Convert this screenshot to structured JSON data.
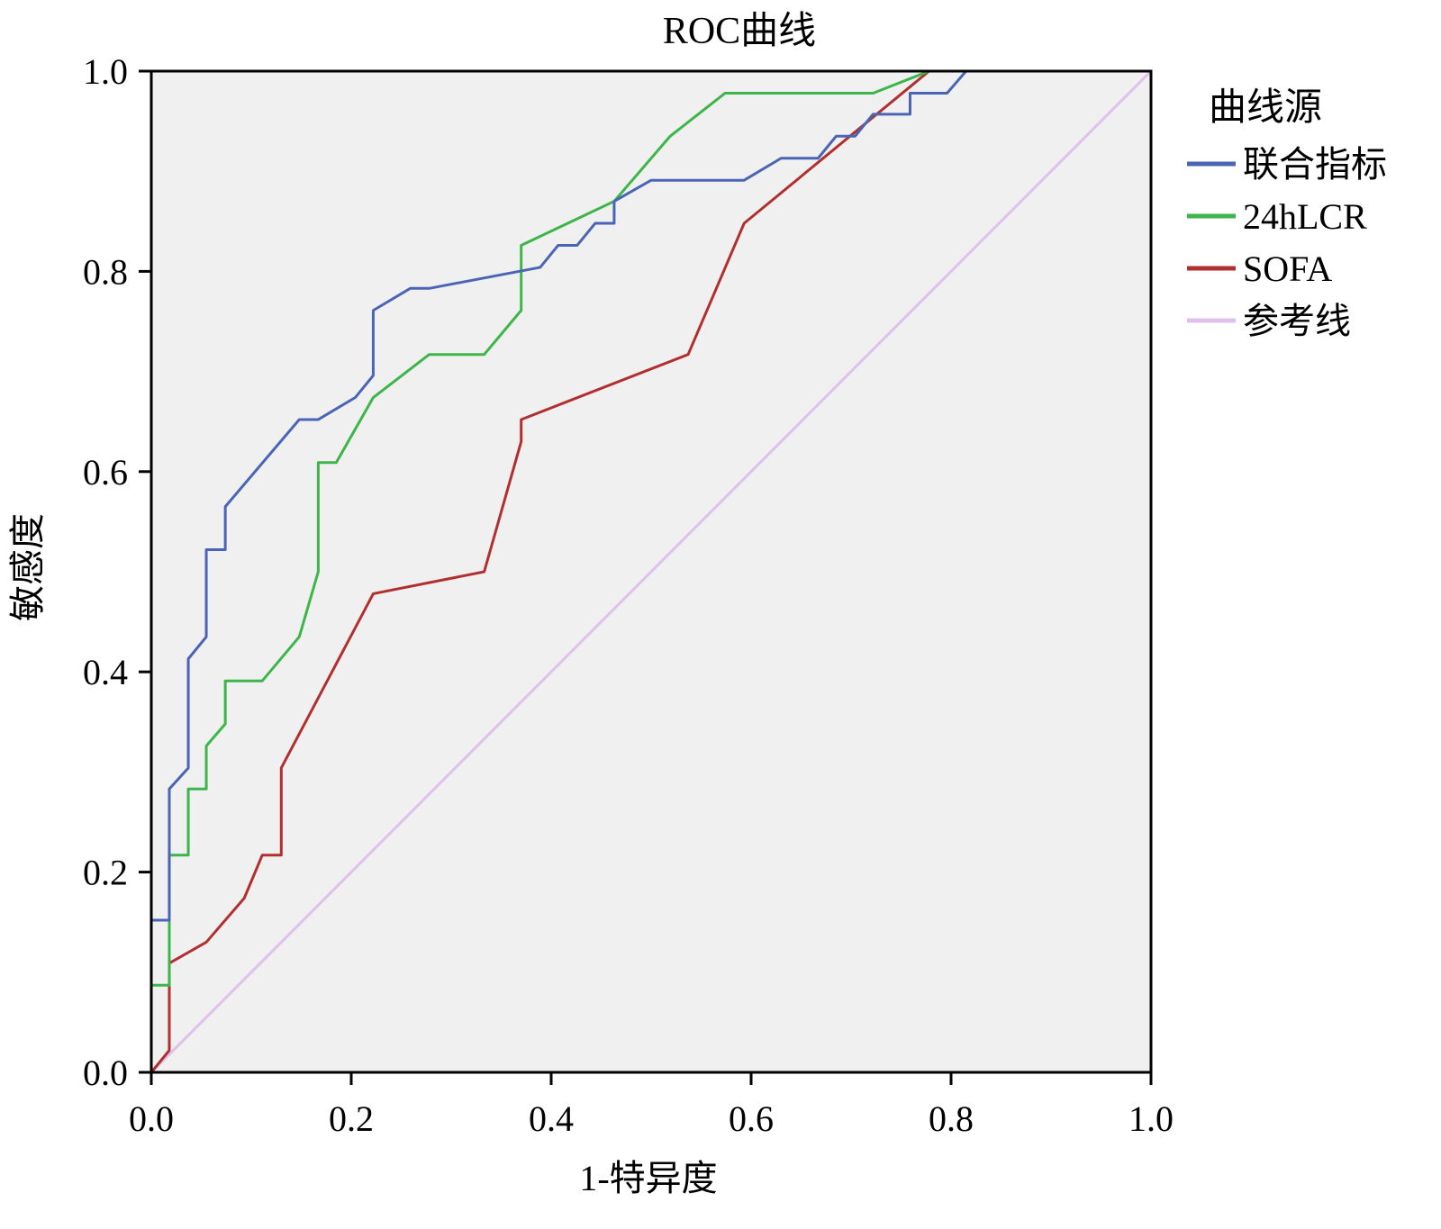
{
  "chart_data": {
    "type": "line",
    "title": "ROC曲线",
    "xlabel": "1-特异度",
    "ylabel": "敏感度",
    "xlim": [
      0,
      1
    ],
    "ylim": [
      0,
      1
    ],
    "xticks": [
      "0.0",
      "0.2",
      "0.4",
      "0.6",
      "0.8",
      "1.0"
    ],
    "yticks": [
      "0.0",
      "0.2",
      "0.4",
      "0.6",
      "0.8",
      "1.0"
    ],
    "grid": false,
    "background": "#f0f0f0",
    "legend_title": "曲线源",
    "legend_position": "right",
    "series": [
      {
        "name": "联合指标",
        "color": "#4a65b5",
        "points": [
          [
            0,
            0
          ],
          [
            0,
            0.152
          ],
          [
            0.018,
            0.152
          ],
          [
            0.018,
            0.283
          ],
          [
            0.037,
            0.304
          ],
          [
            0.037,
            0.413
          ],
          [
            0.055,
            0.435
          ],
          [
            0.055,
            0.522
          ],
          [
            0.074,
            0.522
          ],
          [
            0.074,
            0.565
          ],
          [
            0.148,
            0.652
          ],
          [
            0.167,
            0.652
          ],
          [
            0.204,
            0.674
          ],
          [
            0.222,
            0.696
          ],
          [
            0.222,
            0.761
          ],
          [
            0.259,
            0.783
          ],
          [
            0.278,
            0.783
          ],
          [
            0.389,
            0.804
          ],
          [
            0.407,
            0.826
          ],
          [
            0.426,
            0.826
          ],
          [
            0.444,
            0.848
          ],
          [
            0.463,
            0.848
          ],
          [
            0.463,
            0.87
          ],
          [
            0.5,
            0.891
          ],
          [
            0.593,
            0.891
          ],
          [
            0.63,
            0.913
          ],
          [
            0.667,
            0.913
          ],
          [
            0.685,
            0.935
          ],
          [
            0.704,
            0.935
          ],
          [
            0.722,
            0.957
          ],
          [
            0.759,
            0.957
          ],
          [
            0.759,
            0.978
          ],
          [
            0.796,
            0.978
          ],
          [
            0.815,
            1.0
          ],
          [
            1,
            1
          ]
        ]
      },
      {
        "name": "24hLCR",
        "color": "#3cb54a",
        "points": [
          [
            0,
            0
          ],
          [
            0,
            0.087
          ],
          [
            0.018,
            0.087
          ],
          [
            0.018,
            0.217
          ],
          [
            0.037,
            0.217
          ],
          [
            0.037,
            0.283
          ],
          [
            0.055,
            0.283
          ],
          [
            0.055,
            0.326
          ],
          [
            0.074,
            0.348
          ],
          [
            0.074,
            0.391
          ],
          [
            0.111,
            0.391
          ],
          [
            0.148,
            0.435
          ],
          [
            0.167,
            0.5
          ],
          [
            0.167,
            0.609
          ],
          [
            0.185,
            0.609
          ],
          [
            0.222,
            0.674
          ],
          [
            0.278,
            0.717
          ],
          [
            0.333,
            0.717
          ],
          [
            0.37,
            0.761
          ],
          [
            0.37,
            0.826
          ],
          [
            0.463,
            0.87
          ],
          [
            0.519,
            0.935
          ],
          [
            0.574,
            0.978
          ],
          [
            0.722,
            0.978
          ],
          [
            0.778,
            1.0
          ],
          [
            1,
            1
          ]
        ]
      },
      {
        "name": "SOFA",
        "color": "#b22f2f",
        "points": [
          [
            0,
            0
          ],
          [
            0.018,
            0.022
          ],
          [
            0.018,
            0.109
          ],
          [
            0.055,
            0.13
          ],
          [
            0.093,
            0.174
          ],
          [
            0.111,
            0.217
          ],
          [
            0.13,
            0.217
          ],
          [
            0.13,
            0.304
          ],
          [
            0.222,
            0.478
          ],
          [
            0.333,
            0.5
          ],
          [
            0.37,
            0.63
          ],
          [
            0.37,
            0.652
          ],
          [
            0.537,
            0.717
          ],
          [
            0.593,
            0.848
          ],
          [
            0.778,
            1.0
          ],
          [
            1,
            1
          ]
        ]
      },
      {
        "name": "参考线",
        "color": "#e0c0ec",
        "points": [
          [
            0,
            0
          ],
          [
            1,
            1
          ]
        ]
      }
    ]
  }
}
